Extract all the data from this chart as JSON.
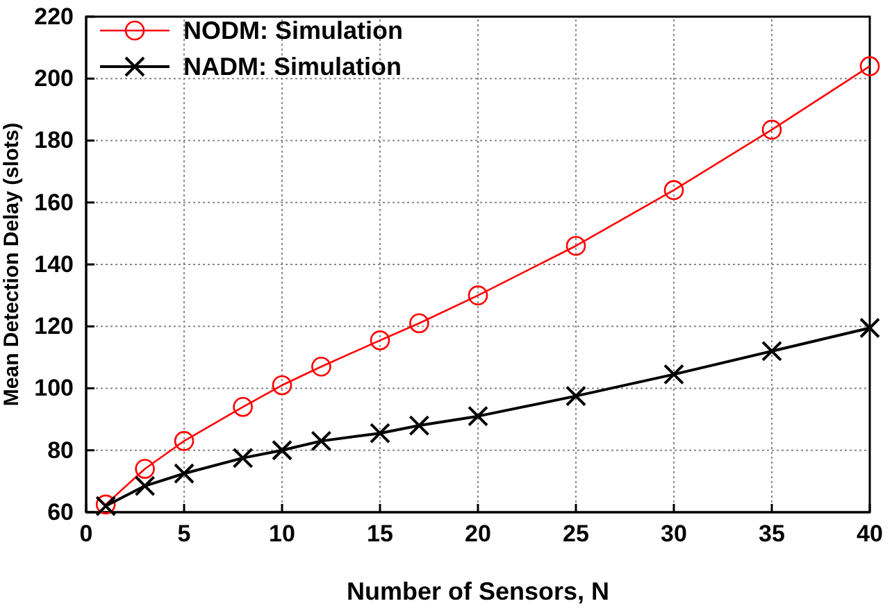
{
  "chart_data": {
    "type": "line",
    "xlabel": "Number of Sensors, N",
    "ylabel": "Mean Detection Delay (slots)",
    "x": [
      1,
      3,
      5,
      8,
      10,
      12,
      15,
      17,
      20,
      25,
      30,
      35,
      40
    ],
    "series": [
      {
        "name": "NODM: Simulation",
        "color": "#ff0000",
        "marker": "circle",
        "values": [
          62.5,
          74,
          83,
          94,
          101,
          107,
          115.5,
          121,
          130,
          146,
          164,
          183.5,
          204
        ]
      },
      {
        "name": "NADM: Simulation",
        "color": "#000000",
        "marker": "cross",
        "values": [
          62,
          68.5,
          72.5,
          77.5,
          80,
          83,
          85.5,
          88,
          91,
          97.5,
          104.5,
          112,
          119.5
        ]
      }
    ],
    "xlim": [
      0,
      40
    ],
    "xticks": [
      0,
      5,
      10,
      15,
      20,
      25,
      30,
      35,
      40
    ],
    "ylim": [
      60,
      220
    ],
    "yticks": [
      60,
      80,
      100,
      120,
      140,
      160,
      180,
      200,
      220
    ],
    "grid": true,
    "legend": "top left",
    "line_style": "solid"
  }
}
